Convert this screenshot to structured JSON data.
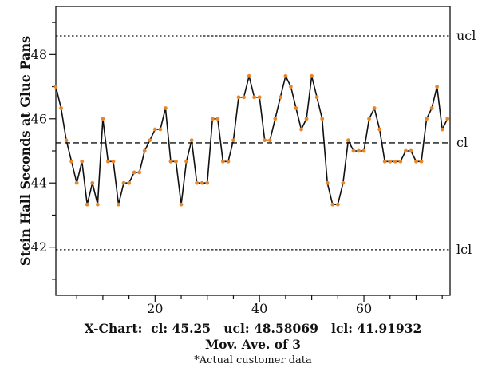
{
  "chart_data": {
    "type": "line",
    "ylabel": "Stein Hall Seconds at Glue Pans",
    "xlabel": "",
    "xlim": [
      1,
      76.5
    ],
    "ylim": [
      40.5,
      49.5
    ],
    "x_ticks": [
      20,
      40,
      60
    ],
    "y_ticks": [
      42,
      44,
      46,
      48
    ],
    "limits": {
      "ucl": {
        "label": "ucl",
        "value": 48.58069,
        "style": "dotted"
      },
      "cl": {
        "label": "cl",
        "value": 45.25,
        "style": "dashed"
      },
      "lcl": {
        "label": "lcl",
        "value": 41.91932,
        "style": "dotted"
      }
    },
    "series": [
      {
        "line_color": "#111111",
        "marker_color": "#e8862a",
        "x": [
          1,
          2,
          3,
          4,
          5,
          6,
          7,
          8,
          9,
          10,
          11,
          12,
          13,
          14,
          15,
          16,
          17,
          18,
          19,
          20,
          21,
          22,
          23,
          24,
          25,
          26,
          27,
          28,
          29,
          30,
          31,
          32,
          33,
          34,
          35,
          36,
          37,
          38,
          39,
          40,
          41,
          42,
          43,
          44,
          45,
          46,
          47,
          48,
          49,
          50,
          51,
          52,
          53,
          54,
          55,
          56,
          57,
          58,
          59,
          60,
          61,
          62,
          63,
          64,
          65,
          66,
          67,
          68,
          69,
          70,
          71,
          72,
          73,
          74,
          75,
          76
        ],
        "values": [
          47.0,
          46.33,
          45.33,
          44.67,
          44.0,
          44.67,
          43.33,
          44.0,
          43.33,
          46.0,
          44.67,
          44.67,
          43.33,
          44.0,
          44.0,
          44.33,
          44.33,
          45.0,
          45.33,
          45.67,
          45.67,
          46.33,
          44.67,
          44.67,
          43.33,
          44.67,
          45.33,
          44.0,
          44.0,
          44.0,
          46.0,
          46.0,
          44.67,
          44.67,
          45.33,
          46.67,
          46.67,
          47.33,
          46.67,
          46.67,
          45.33,
          45.33,
          46.0,
          46.67,
          47.33,
          47.0,
          46.33,
          45.67,
          46.0,
          47.33,
          46.67,
          46.0,
          44.0,
          43.33,
          43.33,
          44.0,
          45.33,
          45.0,
          45.0,
          45.0,
          46.0,
          46.33,
          45.67,
          44.67,
          44.67,
          44.67,
          44.67,
          45.0,
          45.0,
          44.67,
          44.67,
          46.0,
          46.33,
          47.0,
          45.67,
          46.0
        ]
      }
    ]
  },
  "caption": {
    "line1": "X-Chart:  cl: 45.25   ucl: 48.58069   lcl: 41.91932",
    "line2": "Mov. Ave. of 3",
    "line3": "*Actual customer data"
  }
}
